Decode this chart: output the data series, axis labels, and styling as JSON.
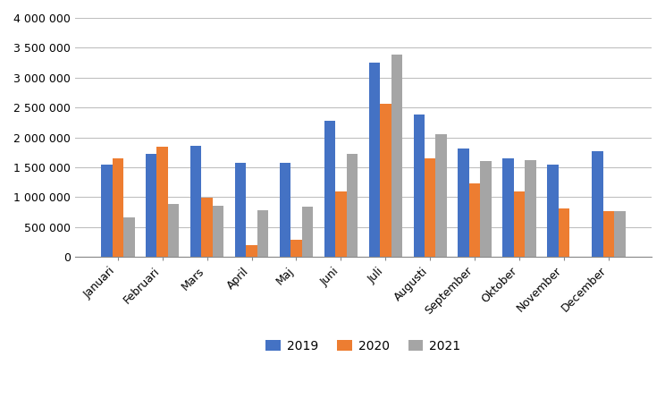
{
  "categories": [
    "Januari",
    "Februari",
    "Mars",
    "April",
    "Maj",
    "Juni",
    "Juli",
    "Augusti",
    "September",
    "Oktober",
    "November",
    "December"
  ],
  "series": {
    "2019": [
      1540000,
      1720000,
      1860000,
      1570000,
      1570000,
      2280000,
      3250000,
      2390000,
      1820000,
      1650000,
      1550000,
      1770000
    ],
    "2020": [
      1650000,
      1840000,
      990000,
      200000,
      290000,
      1100000,
      2560000,
      1650000,
      1230000,
      1100000,
      810000,
      760000
    ],
    "2021": [
      670000,
      890000,
      850000,
      780000,
      840000,
      1720000,
      3380000,
      2060000,
      1600000,
      1620000,
      0,
      760000
    ]
  },
  "colors": {
    "2019": "#4472C4",
    "2020": "#ED7D31",
    "2021": "#A5A5A5"
  },
  "ylim": [
    0,
    4000000
  ],
  "yticks": [
    0,
    500000,
    1000000,
    1500000,
    2000000,
    2500000,
    3000000,
    3500000,
    4000000
  ],
  "ytick_labels": [
    "0",
    "500 000",
    "1 000 000",
    "1 500 000",
    "2 000 000",
    "2 500 000",
    "3 000 000",
    "3 500 000",
    "4 000 000"
  ],
  "legend_labels": [
    "2019",
    "2020",
    "2021"
  ],
  "bar_width": 0.25,
  "background_color": "#ffffff",
  "grid_color": "#bfbfbf"
}
